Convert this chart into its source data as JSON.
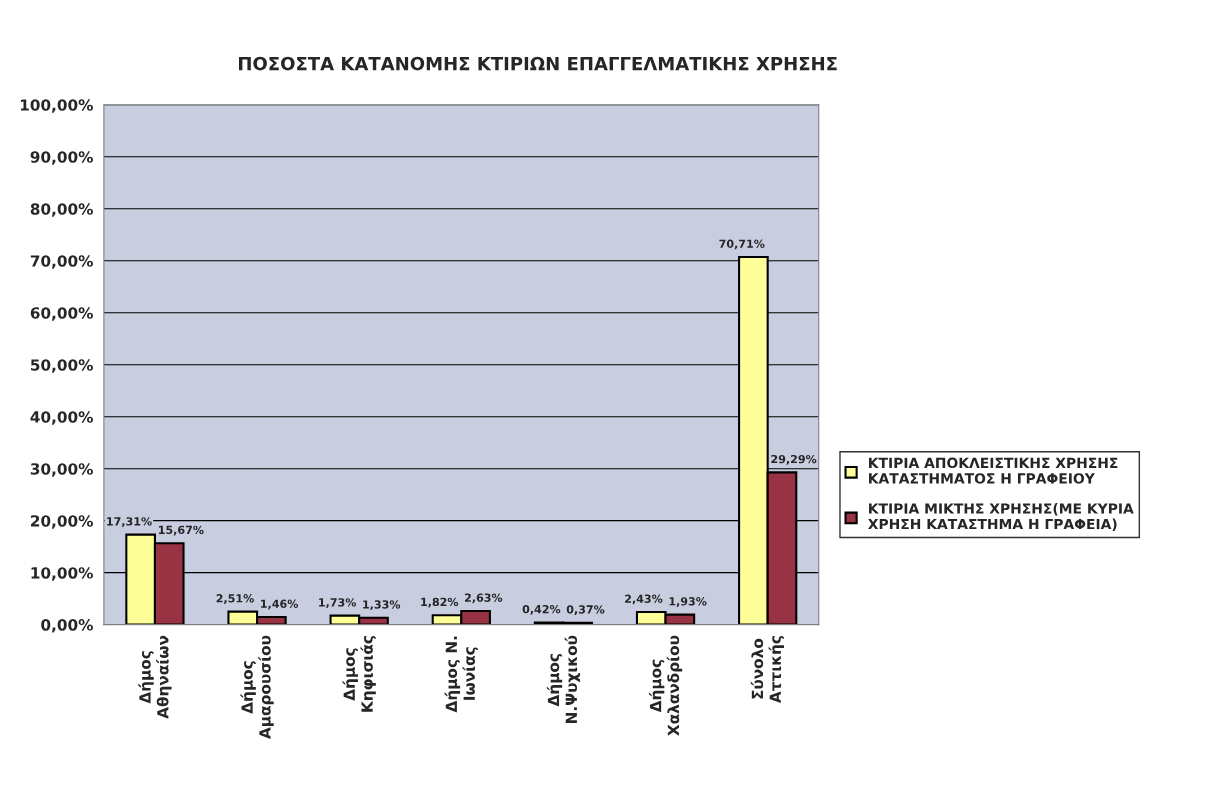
{
  "chart_data": {
    "type": "bar",
    "title": "ΠΟΣΟΣΤΑ ΚΑΤΑΝΟΜΗΣ ΚΤΙΡΙΩΝ ΕΠΑΓΓΕΛΜΑΤΙΚΗΣ ΧΡΗΣΗΣ",
    "categories": [
      "Δήμος\nΑθηναίων",
      "Δήμος\nΑμαρουσίου",
      "Δήμος\nΚηφισιάς",
      "Δήμος Ν.\nΙωνίας",
      "Δήμος\nΝ.Ψυχικού",
      "Δήμος\nΧαλανδρίου",
      "Σύνολο\nΑττικής"
    ],
    "series": [
      {
        "name": "ΚΤΙΡΙΑ ΑΠΟΚΛΕΙΣΤΙΚΗΣ ΧΡΗΣΗΣ\nΚΑΤΑΣΤΗΜΑΤΟΣ Η ΓΡΑΦΕΙΟΥ",
        "color": "#ffff99",
        "values": [
          17.31,
          2.51,
          1.73,
          1.82,
          0.42,
          2.43,
          70.71
        ],
        "value_labels": [
          "17,31%",
          "2,51%",
          "1,73%",
          "1,82%",
          "0,42%",
          "2,43%",
          "70,71%"
        ]
      },
      {
        "name": "ΚΤΙΡΙΑ ΜΙΚΤΗΣ ΧΡΗΣΗΣ(ΜΕ ΚΥΡΙΑ\nΧΡΗΣΗ ΚΑΤΑΣΤΗΜΑ Η ΓΡΑΦΕΙΑ)",
        "color": "#993344",
        "values": [
          15.67,
          1.46,
          1.33,
          2.63,
          0.37,
          1.93,
          29.29
        ],
        "value_labels": [
          "15,67%",
          "1,46%",
          "1,33%",
          "2,63%",
          "0,37%",
          "1,93%",
          "29,29%"
        ]
      }
    ],
    "ylim": [
      0,
      100
    ],
    "yticks": [
      {
        "value": 0,
        "label": "0,00%"
      },
      {
        "value": 10,
        "label": "10,00%"
      },
      {
        "value": 20,
        "label": "20,00%"
      },
      {
        "value": 30,
        "label": "30,00%"
      },
      {
        "value": 40,
        "label": "40,00%"
      },
      {
        "value": 50,
        "label": "50,00%"
      },
      {
        "value": 60,
        "label": "60,00%"
      },
      {
        "value": 70,
        "label": "70,00%"
      },
      {
        "value": 80,
        "label": "80,00%"
      },
      {
        "value": 90,
        "label": "90,00%"
      },
      {
        "value": 100,
        "label": "100,00%"
      }
    ],
    "grid": "y",
    "legend": "right"
  }
}
